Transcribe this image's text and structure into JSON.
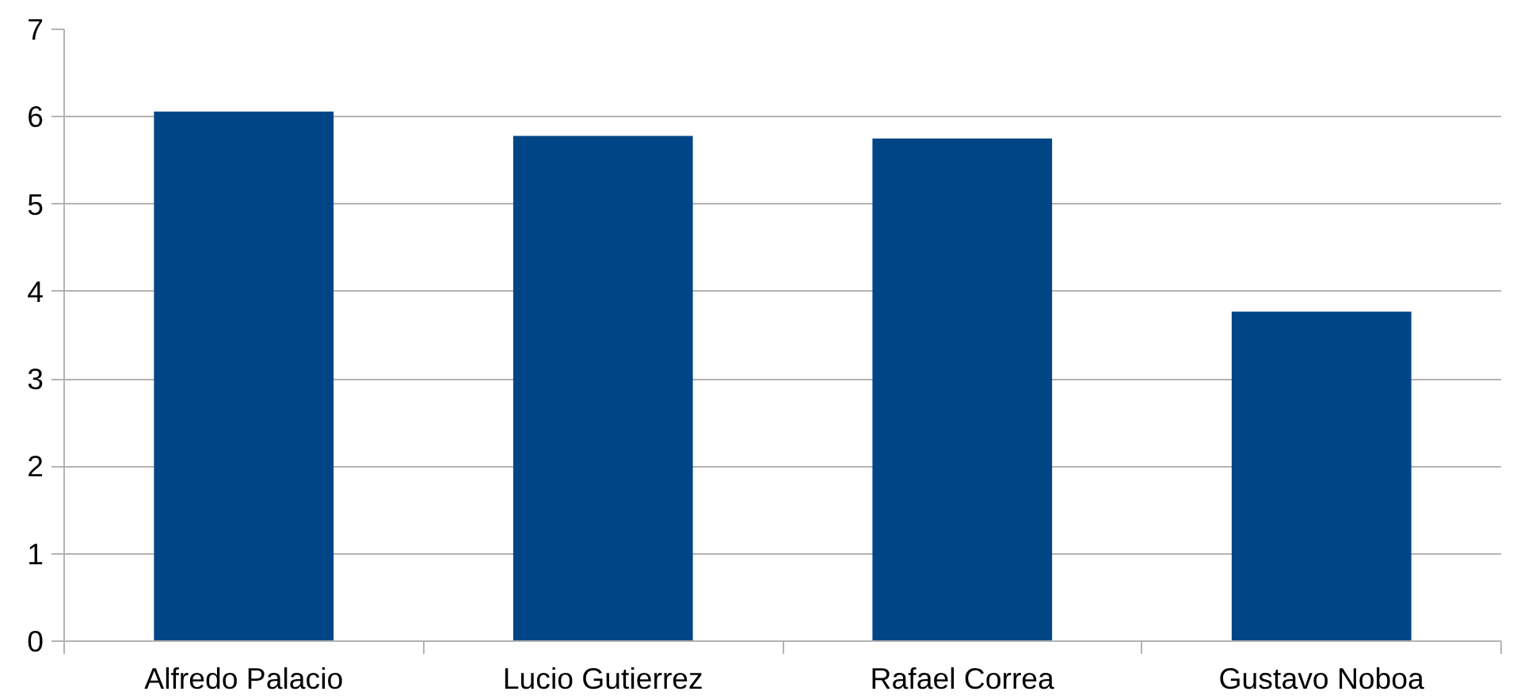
{
  "chart_data": {
    "type": "bar",
    "categories": [
      "Alfredo Palacio",
      "Lucio Gutierrez",
      "Rafael Correa",
      "Gustavo Noboa"
    ],
    "values": [
      6.06,
      5.78,
      5.75,
      3.77
    ],
    "color": "#004586",
    "ylim": [
      0,
      7
    ],
    "yticks": [
      0,
      1,
      2,
      3,
      4,
      5,
      6,
      7
    ],
    "grid": "y"
  }
}
